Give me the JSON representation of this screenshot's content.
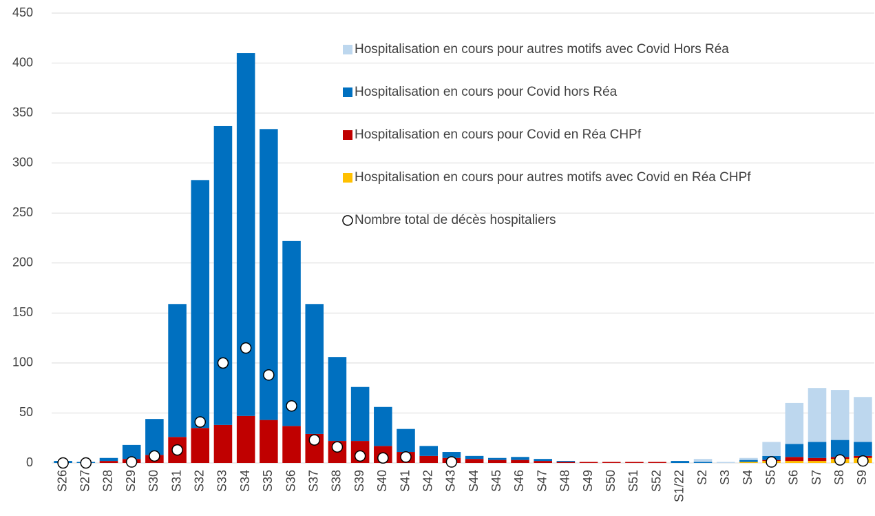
{
  "chart_data": {
    "type": "bar",
    "stacked": true,
    "grid": true,
    "legend": "top-right",
    "categories": [
      "S26",
      "S27",
      "S28",
      "S29",
      "S30",
      "S31",
      "S32",
      "S33",
      "S34",
      "S35",
      "S36",
      "S37",
      "S38",
      "S39",
      "S40",
      "S41",
      "S42",
      "S43",
      "S44",
      "S45",
      "S46",
      "S47",
      "S48",
      "S49",
      "S50",
      "S51",
      "S52",
      "S1/22",
      "S2",
      "S3",
      "S4",
      "S5",
      "S6",
      "S7",
      "S8",
      "S9"
    ],
    "ylim": [
      0,
      450
    ],
    "yticks": [
      0,
      50,
      100,
      150,
      200,
      250,
      300,
      350,
      400,
      450
    ],
    "series": [
      {
        "name": "Hospitalisation en cours pour autres motifs avec Covid Hors Réa",
        "type": "bar",
        "color": "#bdd7ee",
        "values": [
          0,
          0,
          0,
          0,
          0,
          0,
          0,
          0,
          0,
          0,
          0,
          0,
          0,
          0,
          0,
          0,
          0,
          0,
          0,
          0,
          0,
          0,
          0,
          0,
          0,
          0,
          0,
          0,
          3,
          1,
          2,
          14,
          41,
          54,
          50,
          45
        ]
      },
      {
        "name": "Hospitalisation en cours pour Covid hors Réa",
        "type": "bar",
        "color": "#0070c0",
        "values": [
          2,
          1,
          3,
          14,
          36,
          133,
          248,
          299,
          363,
          291,
          185,
          130,
          84,
          54,
          39,
          23,
          10,
          6,
          3,
          2,
          3,
          2,
          1,
          0,
          0,
          0,
          0,
          2,
          1,
          0,
          2,
          4,
          13,
          16,
          17,
          14
        ]
      },
      {
        "name": "Hospitalisation en cours pour Covid en Réa CHPf",
        "type": "bar",
        "color": "#c00000",
        "values": [
          0,
          0,
          2,
          4,
          8,
          26,
          35,
          38,
          47,
          43,
          37,
          29,
          22,
          22,
          17,
          11,
          7,
          5,
          4,
          3,
          3,
          2,
          1,
          1,
          1,
          1,
          1,
          0,
          0,
          0,
          0,
          1,
          4,
          3,
          2,
          2
        ]
      },
      {
        "name": "Hospitalisation en cours pour autres motifs avec Covid en Réa CHPf",
        "type": "bar",
        "color": "#ffc000",
        "values": [
          0,
          0,
          0,
          0,
          0,
          0,
          0,
          0,
          0,
          0,
          0,
          0,
          0,
          0,
          0,
          0,
          0,
          0,
          0,
          0,
          0,
          0,
          0,
          0,
          0,
          0,
          0,
          0,
          0,
          0,
          1,
          2,
          2,
          2,
          4,
          5
        ]
      },
      {
        "name": "Nombre total de décès hospitaliers",
        "type": "scatter",
        "color": "#ffffff",
        "values": [
          0,
          0,
          null,
          1,
          7,
          13,
          41,
          100,
          115,
          88,
          57,
          23,
          16,
          7,
          5,
          6,
          null,
          1,
          null,
          null,
          null,
          null,
          null,
          null,
          null,
          null,
          null,
          null,
          null,
          null,
          null,
          1,
          null,
          null,
          3,
          2
        ]
      }
    ]
  }
}
